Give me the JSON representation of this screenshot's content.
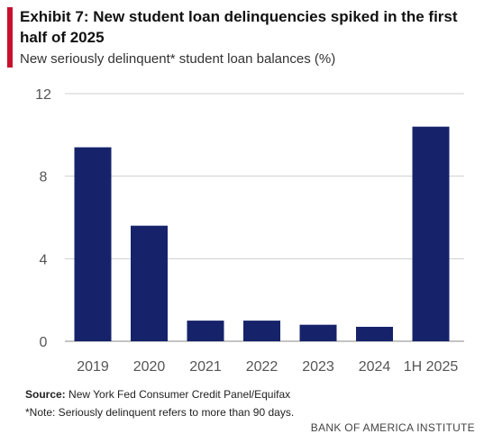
{
  "header": {
    "title": "Exhibit 7: New student loan delinquencies spiked in the first half of 2025",
    "subtitle": "New seriously delinquent* student loan balances (%)"
  },
  "footer": {
    "source_label": "Source:",
    "source_text": "New York Fed Consumer Credit Panel/Equifax",
    "note": "*Note: Seriously delinquent refers to more than 90 days.",
    "brand": "BANK OF AMERICA INSTITUTE"
  },
  "colors": {
    "accent": "#c8102e",
    "bar": "#16236b",
    "grid": "#cfcfcf"
  },
  "chart_data": {
    "type": "bar",
    "categories": [
      "2019",
      "2020",
      "2021",
      "2022",
      "2023",
      "2024",
      "1H 2025"
    ],
    "values": [
      9.4,
      5.6,
      1.0,
      1.0,
      0.8,
      0.7,
      10.4
    ],
    "ylim": [
      0,
      12
    ],
    "yticks": [
      "0",
      "4",
      "8",
      "12"
    ],
    "grid": true
  }
}
